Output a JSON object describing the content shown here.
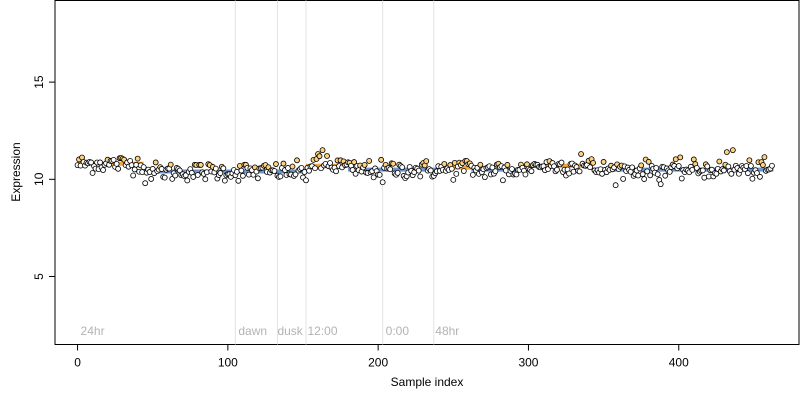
{
  "chart_data": {
    "type": "scatter",
    "xlabel": "Sample index",
    "ylabel": "Expression",
    "xlim": [
      -15,
      480
    ],
    "ylim": [
      1.5,
      19.2
    ],
    "xticks": [
      0,
      100,
      200,
      300,
      400
    ],
    "yticks": [
      5,
      10,
      15
    ],
    "vlines": [
      105,
      133,
      152,
      203,
      237
    ],
    "annotations": [
      {
        "x": 2,
        "y": 2,
        "text": "24hr"
      },
      {
        "x": 107,
        "y": 2,
        "text": "dawn"
      },
      {
        "x": 133,
        "y": 2,
        "text": "dusk"
      },
      {
        "x": 153,
        "y": 2,
        "text": "12:00"
      },
      {
        "x": 205,
        "y": 2,
        "text": "0:00"
      },
      {
        "x": 238,
        "y": 2,
        "text": "48hr"
      }
    ],
    "point_fill_default": "#ffffff",
    "point_fill_high": "#ffd27f",
    "segment_colors": {
      "high": "#f2a640",
      "low": "#6f95cf"
    },
    "segments": [
      {
        "x0": 0,
        "x1": 44,
        "y": 10.8,
        "level": "high"
      },
      {
        "x0": 44,
        "x1": 152,
        "y": 10.4,
        "level": "low"
      },
      {
        "x0": 152,
        "x1": 180,
        "y": 10.7,
        "level": "high"
      },
      {
        "x0": 180,
        "x1": 250,
        "y": 10.5,
        "level": "low"
      },
      {
        "x0": 250,
        "x1": 262,
        "y": 10.6,
        "level": "high"
      },
      {
        "x0": 262,
        "x1": 300,
        "y": 10.5,
        "level": "low"
      },
      {
        "x0": 300,
        "x1": 342,
        "y": 10.7,
        "level": "high"
      },
      {
        "x0": 342,
        "x1": 463,
        "y": 10.5,
        "level": "low"
      }
    ],
    "special_points": [
      {
        "x": 45,
        "y": 9.8
      },
      {
        "x": 152,
        "y": 9.95
      },
      {
        "x": 203,
        "y": 9.85
      },
      {
        "x": 283,
        "y": 9.95
      },
      {
        "x": 335,
        "y": 11.3
      },
      {
        "x": 432,
        "y": 11.4
      },
      {
        "x": 436,
        "y": 11.5
      },
      {
        "x": 160,
        "y": 11.3
      },
      {
        "x": 163,
        "y": 11.5
      },
      {
        "x": 166,
        "y": 11.2
      },
      {
        "x": 388,
        "y": 9.75
      }
    ],
    "n_points": 463,
    "point_mean_y": 10.55,
    "point_spread_y": 0.42
  }
}
